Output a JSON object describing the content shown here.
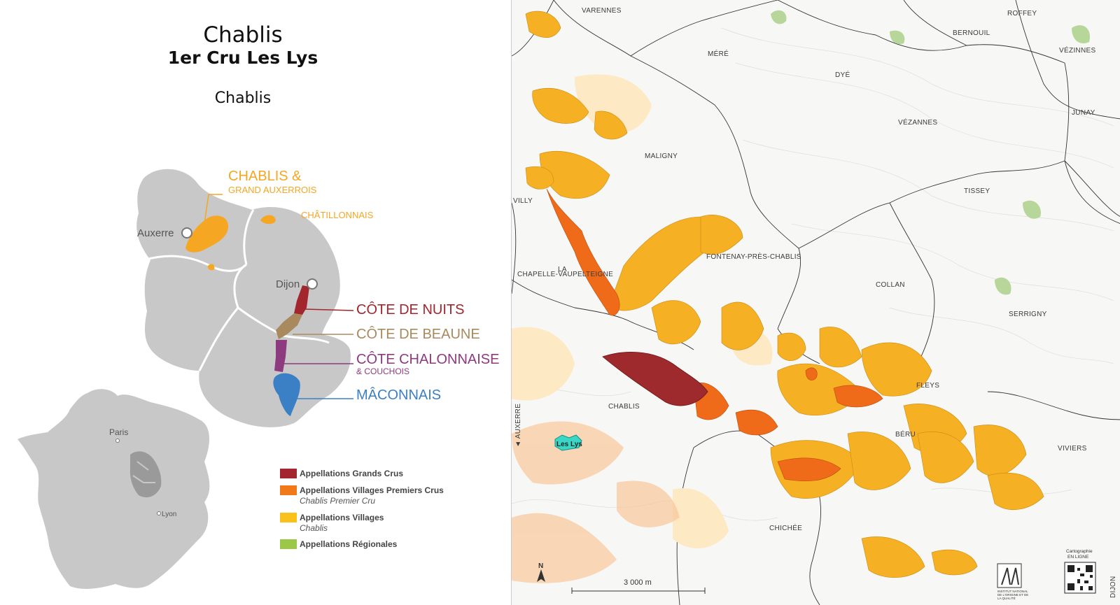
{
  "header": {
    "title": "Chablis",
    "subtitle": "1er Cru Les Lys",
    "region": "Chablis"
  },
  "regions_map": {
    "chablis_label_1": "CHABLIS &",
    "chablis_label_2": "GRAND AUXERROIS",
    "chatillonnais": "CHÂTILLONNAIS",
    "auxerre": "Auxerre",
    "dijon": "Dijon",
    "cote_nuits": "CÔTE DE NUITS",
    "cote_beaune": "CÔTE DE BEAUNE",
    "cote_chalonnaise": "CÔTE CHALONNAISE",
    "couchois": "& COUCHOIS",
    "maconnais": "MÂCONNAIS",
    "paris": "Paris",
    "lyon": "Lyon",
    "colors": {
      "chablis": "#f5a623",
      "nuits": "#a3262e",
      "beaune": "#a88a5e",
      "chalonnaise": "#8e3a7e",
      "maconnais": "#3b80c4"
    }
  },
  "legend": {
    "items": [
      {
        "label": "Appellations Grands Crus",
        "sub": "",
        "color": "#a3262e"
      },
      {
        "label": "Appellations Villages Premiers Crus",
        "sub": "Chablis Premier Cru",
        "color": "#f07a1a"
      },
      {
        "label": "Appellations Villages",
        "sub": "Chablis",
        "color": "#f9c21a"
      },
      {
        "label": "Appellations Régionales",
        "sub": "",
        "color": "#9cc84a"
      }
    ]
  },
  "detail_map": {
    "villages": {
      "varennes": "VARENNES",
      "roffey": "ROFFEY",
      "bernouil": "BERNOUIL",
      "vezinnes": "VÉZINNES",
      "mere": "MÉRÉ",
      "dye": "DYÉ",
      "junay": "JUNAY",
      "vezannes": "VÉZANNES",
      "maligny": "MALIGNY",
      "tissey": "TISSEY",
      "villy": "VILLY",
      "fontenay": "FONTENAY-PRÈS-CHABLIS",
      "la": "LA",
      "chapelle": "CHAPELLE-VAUPELTEIGNE",
      "collan": "COLLAN",
      "serrigny": "SERRIGNY",
      "fleys": "FLEYS",
      "chablis": "CHABLIS",
      "beru": "BÉRU",
      "viviers": "VIVIERS",
      "chichee": "CHICHÉE",
      "auxerre": "◄ AUXERRE",
      "dijon": "DIJON"
    },
    "highlight": "Les Lys",
    "scale": "3 000 m",
    "north": "N",
    "cartographie": "Cartographie",
    "en_ligne": "EN LIGNE",
    "inao_1": "INSTITUT NATIONAL",
    "inao_2": "DE L'ORIGINE ET DE",
    "inao_3": "LA QUALITÉ"
  }
}
